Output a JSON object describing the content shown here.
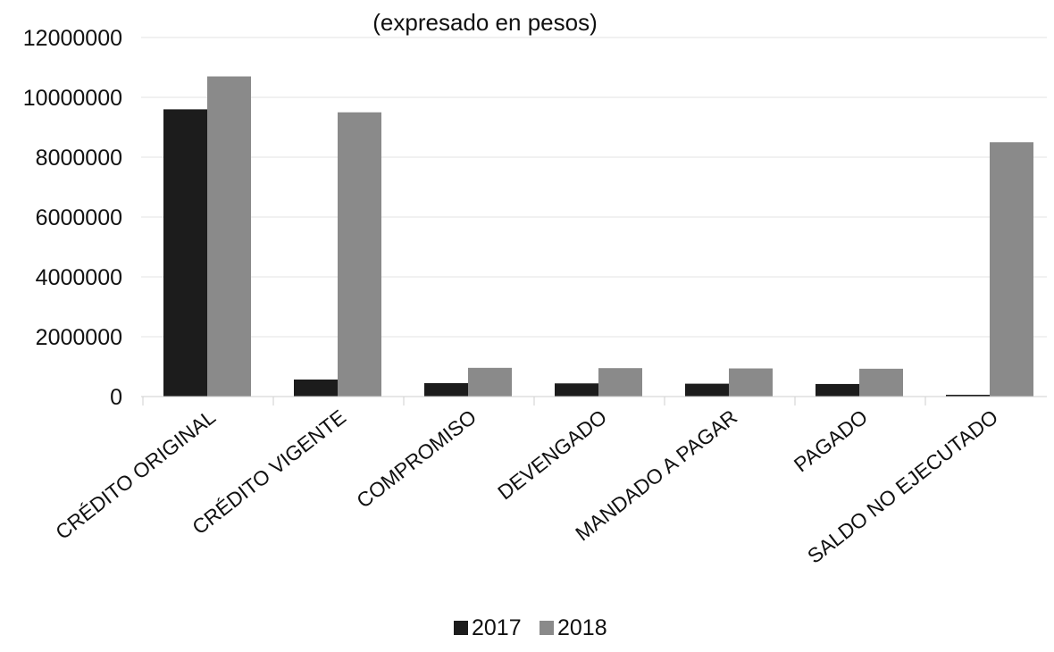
{
  "chart_data": {
    "type": "bar",
    "subtitle": "(expresado en pesos)",
    "categories": [
      "CRÉDITO ORIGINAL",
      "CRÉDITO VIGENTE",
      "COMPROMISO",
      "DEVENGADO",
      "MANDADO A PAGAR",
      "PAGADO",
      "SALDO NO EJECUTADO"
    ],
    "series": [
      {
        "name": "2017",
        "color": "#1c1c1c",
        "values": [
          9600000,
          570000,
          450000,
          440000,
          430000,
          420000,
          60000
        ]
      },
      {
        "name": "2018",
        "color": "#8a8a8a",
        "values": [
          10700000,
          9500000,
          960000,
          950000,
          940000,
          930000,
          8500000
        ]
      }
    ],
    "ylim": [
      0,
      12000000
    ],
    "yticks": [
      "0",
      "2000000",
      "4000000",
      "6000000",
      "8000000",
      "10000000",
      "12000000"
    ],
    "grid": true,
    "legend": "bottom-center"
  }
}
